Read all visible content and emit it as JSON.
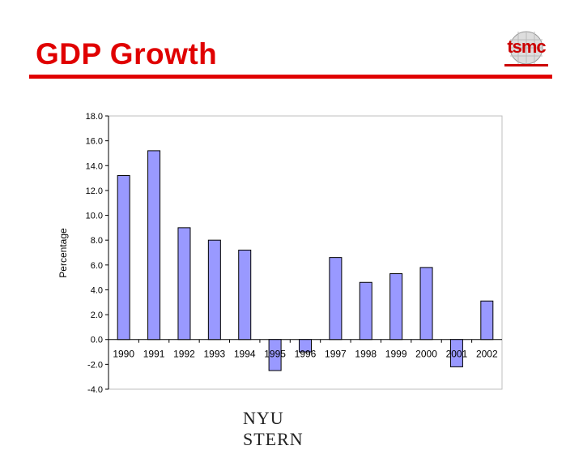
{
  "slide": {
    "title": "GDP Growth",
    "logo_text": "tsmc",
    "footer_logo": "NYU STERN"
  },
  "colors": {
    "title": "#e00000",
    "bar_fill": "#9999ff",
    "bar_stroke": "#000000"
  },
  "chart_data": {
    "type": "bar",
    "title": "",
    "xlabel": "",
    "ylabel": "Percentage",
    "categories": [
      "1990",
      "1991",
      "1992",
      "1993",
      "1994",
      "1995",
      "1996",
      "1997",
      "1998",
      "1999",
      "2000",
      "2001",
      "2002"
    ],
    "values": [
      13.2,
      15.2,
      9.0,
      8.0,
      7.2,
      -2.5,
      -1.0,
      6.6,
      4.6,
      5.3,
      5.8,
      -2.2,
      3.1
    ],
    "ylim": [
      -4.0,
      18.0
    ],
    "yticks": [
      "18.0",
      "16.0",
      "14.0",
      "12.0",
      "10.0",
      "8.0",
      "6.0",
      "4.0",
      "2.0",
      "0.0",
      "-2.0",
      "-4.0"
    ],
    "legend": "none"
  }
}
